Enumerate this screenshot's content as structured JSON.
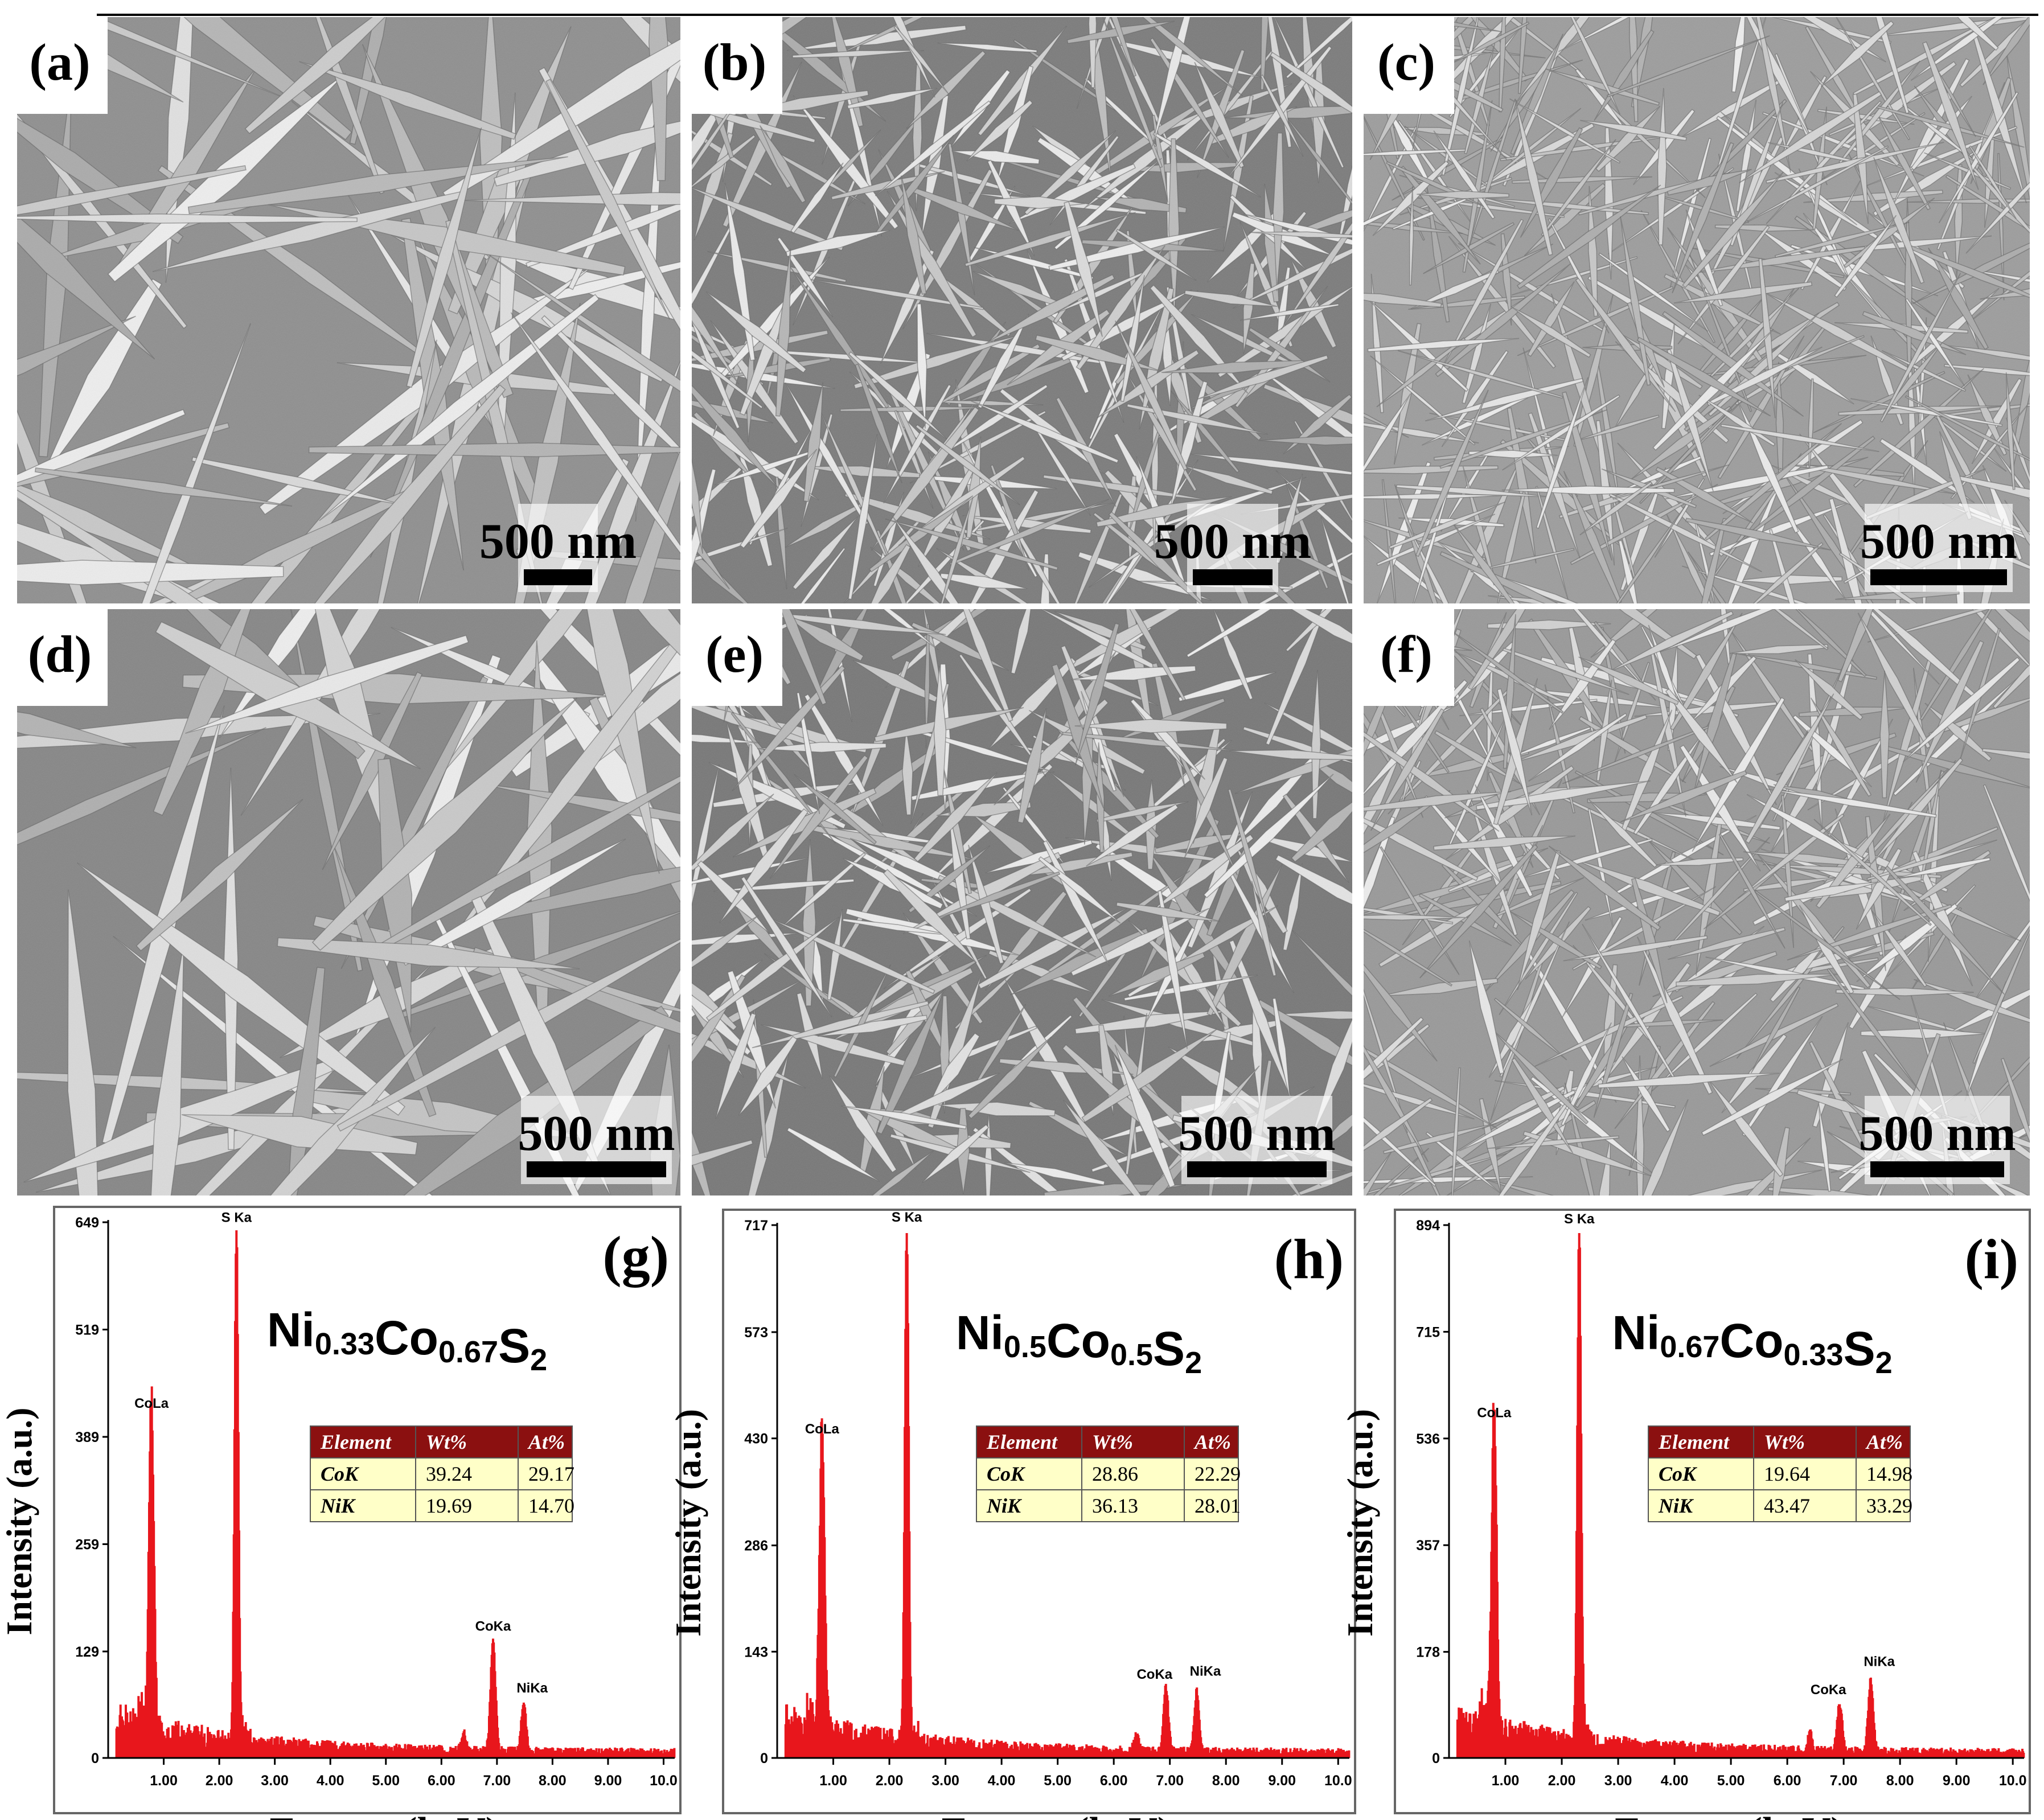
{
  "figure": {
    "sem_panels": [
      {
        "label": "(a)",
        "scale_bar": "500 nm"
      },
      {
        "label": "(b)",
        "scale_bar": "500 nm"
      },
      {
        "label": "(c)",
        "scale_bar": "500 nm"
      },
      {
        "label": "(d)",
        "scale_bar": "500 nm"
      },
      {
        "label": "(e)",
        "scale_bar": "500 nm"
      },
      {
        "label": "(f)",
        "scale_bar": "500 nm"
      }
    ],
    "edx_table_headers": [
      "Element",
      "Wt%",
      "At%"
    ],
    "colors": {
      "spectrum": "#e8161c",
      "table_header": "#8b1010",
      "table_body": "#ffffc8",
      "sem_gray": "#9a9a9a"
    }
  },
  "chart_data": [
    {
      "type": "bar",
      "panel_label": "(g)",
      "compound": {
        "base": [
          [
            "Ni",
            "0.33"
          ],
          [
            "Co",
            "0.67"
          ],
          [
            "S",
            "2"
          ]
        ]
      },
      "xlabel": "Energy (keV)",
      "ylabel": "Intensity (a.u.)",
      "xlim": [
        0,
        10.2
      ],
      "ylim": [
        0,
        649
      ],
      "xticks": [
        "1.00",
        "2.00",
        "3.00",
        "4.00",
        "5.00",
        "6.00",
        "7.00",
        "8.00",
        "9.00",
        "10.0"
      ],
      "yticks": [
        "0",
        "129",
        "259",
        "389",
        "519",
        "649"
      ],
      "peaks": [
        {
          "label": "CoLa",
          "energy": 0.78,
          "intensity": 405
        },
        {
          "label": "S Ka",
          "energy": 2.31,
          "intensity": 630
        },
        {
          "label": "CoKa",
          "energy": 6.93,
          "intensity": 135
        },
        {
          "label": "NiKa",
          "energy": 7.48,
          "intensity": 60
        }
      ],
      "table": [
        {
          "element": "CoK",
          "wt": "39.24",
          "at": "29.17"
        },
        {
          "element": "NiK",
          "wt": "19.69",
          "at": "14.70"
        }
      ]
    },
    {
      "type": "bar",
      "panel_label": "(h)",
      "compound": {
        "base": [
          [
            "Ni",
            "0.5"
          ],
          [
            "Co",
            "0.5"
          ],
          [
            "S",
            "2"
          ]
        ]
      },
      "xlabel": "Energy (keV)",
      "ylabel": "Intensity (a.u.)",
      "xlim": [
        0,
        10.2
      ],
      "ylim": [
        0,
        717
      ],
      "xticks": [
        "1.00",
        "2.00",
        "3.00",
        "4.00",
        "5.00",
        "6.00",
        "7.00",
        "8.00",
        "9.00",
        "10.0"
      ],
      "yticks": [
        "0",
        "143",
        "286",
        "430",
        "573",
        "717"
      ],
      "peaks": [
        {
          "label": "CoLa",
          "energy": 0.8,
          "intensity": 415
        },
        {
          "label": "S Ka",
          "energy": 2.31,
          "intensity": 700
        },
        {
          "label": "CoKa",
          "energy": 6.93,
          "intensity": 85
        },
        {
          "label": "NiKa",
          "energy": 7.48,
          "intensity": 80
        }
      ],
      "table": [
        {
          "element": "CoK",
          "wt": "28.86",
          "at": "22.29"
        },
        {
          "element": "NiK",
          "wt": "36.13",
          "at": "28.01"
        }
      ]
    },
    {
      "type": "bar",
      "panel_label": "(i)",
      "compound": {
        "base": [
          [
            "Ni",
            "0.67"
          ],
          [
            "Co",
            "0.33"
          ],
          [
            "S",
            "2"
          ]
        ]
      },
      "xlabel": "Energy (keV)",
      "ylabel": "Intensity (a.u.)",
      "xlim": [
        0,
        10.2
      ],
      "ylim": [
        0,
        894
      ],
      "xticks": [
        "1.00",
        "2.00",
        "3.00",
        "4.00",
        "5.00",
        "6.00",
        "7.00",
        "8.00",
        "9.00",
        "10.0"
      ],
      "yticks": [
        "0",
        "178",
        "357",
        "536",
        "715",
        "894"
      ],
      "peaks": [
        {
          "label": "CoLa",
          "energy": 0.8,
          "intensity": 545
        },
        {
          "label": "S Ka",
          "energy": 2.31,
          "intensity": 870
        },
        {
          "label": "CoKa",
          "energy": 6.93,
          "intensity": 80
        },
        {
          "label": "NiKa",
          "energy": 7.48,
          "intensity": 120
        }
      ],
      "table": [
        {
          "element": "CoK",
          "wt": "19.64",
          "at": "14.98"
        },
        {
          "element": "NiK",
          "wt": "43.47",
          "at": "33.29"
        }
      ]
    }
  ]
}
